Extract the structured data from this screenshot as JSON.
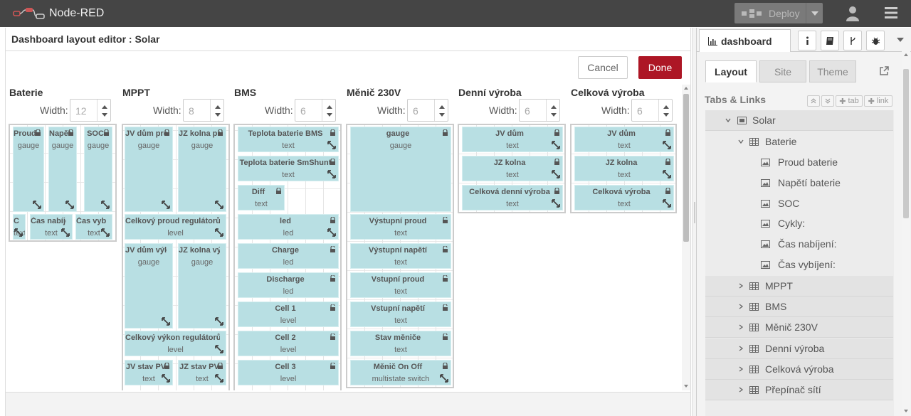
{
  "header": {
    "title": "Node-RED",
    "deploy_label": "Deploy"
  },
  "editor": {
    "title": "Dashboard layout editor : Solar",
    "cancel_label": "Cancel",
    "done_label": "Done",
    "width_label": "Width:",
    "groups": [
      {
        "name": "Baterie",
        "width": "12",
        "widgets": [
          {
            "label": "Proud baterie",
            "type": "gauge"
          },
          {
            "label": "Napětí baterie",
            "type": "gauge"
          },
          {
            "label": "SOC",
            "type": "gauge"
          },
          {
            "label": "Cykly:",
            "type": "text"
          },
          {
            "label": "Čas nabíjení:",
            "type": "text"
          },
          {
            "label": "Čas vybíjení:",
            "type": "text"
          }
        ]
      },
      {
        "name": "MPPT",
        "width": "8",
        "widgets": [
          {
            "label": "JV dům proud",
            "type": "gauge"
          },
          {
            "label": "JZ kolna proud",
            "type": "gauge"
          },
          {
            "label": "Celkový proud regulátorů",
            "type": "level"
          },
          {
            "label": "JV dům výkon",
            "type": "gauge"
          },
          {
            "label": "JZ kolna výkon",
            "type": "gauge"
          },
          {
            "label": "Celkový výkon regulátorů",
            "type": "level"
          },
          {
            "label": "JV stav PV",
            "type": "text"
          },
          {
            "label": "JZ stav PV",
            "type": "text"
          }
        ]
      },
      {
        "name": "BMS",
        "width": "6",
        "widgets": [
          {
            "label": "Teplota baterie BMS",
            "type": "text"
          },
          {
            "label": "Teplota baterie SmShunt",
            "type": "text"
          },
          {
            "label": "Diff",
            "type": "text"
          },
          {
            "label": "led",
            "type": "led"
          },
          {
            "label": "Charge",
            "type": "led"
          },
          {
            "label": "Discharge",
            "type": "led"
          },
          {
            "label": "Cell 1",
            "type": "level"
          },
          {
            "label": "Cell 2",
            "type": "level"
          },
          {
            "label": "Cell 3",
            "type": "level"
          }
        ]
      },
      {
        "name": "Měnič 230V",
        "width": "6",
        "widgets": [
          {
            "label": "gauge",
            "type": "gauge"
          },
          {
            "label": "Výstupní proud",
            "type": "text"
          },
          {
            "label": "Výstupní napětí",
            "type": "text"
          },
          {
            "label": "Vstupní proud",
            "type": "text"
          },
          {
            "label": "Vstupní napětí",
            "type": "text"
          },
          {
            "label": "Stav měniče",
            "type": "text"
          },
          {
            "label": "Měnič On Off",
            "type": "multistate switch"
          }
        ]
      },
      {
        "name": "Denní výroba",
        "width": "6",
        "widgets": [
          {
            "label": "JV dům",
            "type": "text"
          },
          {
            "label": "JZ kolna",
            "type": "text"
          },
          {
            "label": "Celková denní výroba",
            "type": "text"
          }
        ]
      },
      {
        "name": "Celková výroba",
        "width": "6",
        "widgets": [
          {
            "label": "JV dům",
            "type": "text"
          },
          {
            "label": "JZ kolna",
            "type": "text"
          },
          {
            "label": "Celková výroba",
            "type": "text"
          }
        ]
      }
    ]
  },
  "sidebar": {
    "active_tab": "dashboard",
    "subtabs": [
      "Layout",
      "Site",
      "Theme"
    ],
    "tabs_links_label": "Tabs & Links",
    "tab_button": "tab",
    "link_button": "link",
    "tree": {
      "tab": "Solar",
      "expanded_group": "Baterie",
      "widgets": [
        "Proud baterie",
        "Napětí baterie",
        "SOC",
        "Cykly:",
        "Čas nabíjení:",
        "Čas vybíjení:"
      ],
      "groups": [
        "MPPT",
        "BMS",
        "Měnič 230V",
        "Denní výroba",
        "Celková výroba",
        "Přepínač sítí"
      ]
    }
  },
  "colors": {
    "header": "#454545",
    "done": "#ad1625",
    "widget": "#b8dfe3"
  },
  "icons": [
    "node-red-logo-icon",
    "deploy-icon",
    "user-icon",
    "menu-icon",
    "chart-icon",
    "info-icon",
    "book-icon",
    "branch-icon",
    "bug-icon",
    "lock-icon",
    "unlock-icon",
    "resize-icon",
    "open-external-icon",
    "grid-icon",
    "image-icon",
    "chevron-right-icon",
    "chevron-down-icon"
  ]
}
